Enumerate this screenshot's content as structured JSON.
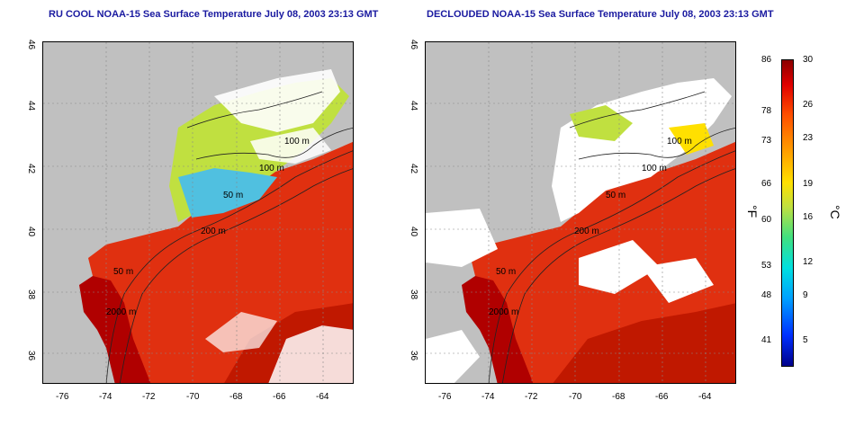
{
  "titles": {
    "left": "RU COOL NOAA-15 Sea Surface Temperature July 08, 2003 23:13 GMT",
    "right": "DECLOUDED NOAA-15 Sea Surface Temperature July 08, 2003 23:13 GMT"
  },
  "axes": {
    "x_ticks": [
      "-76",
      "-74",
      "-72",
      "-70",
      "-68",
      "-66",
      "-64"
    ],
    "y_ticks": [
      "46",
      "44",
      "42",
      "40",
      "38",
      "36"
    ]
  },
  "contour_labels": [
    "100 m",
    "100 m",
    "50 m",
    "200 m",
    "50 m",
    "2000 m"
  ],
  "colorbar": {
    "fahrenheit_ticks": [
      "86",
      "78",
      "73",
      "66",
      "60",
      "53",
      "48",
      "41"
    ],
    "celsius_ticks": [
      "30",
      "26",
      "23",
      "19",
      "16",
      "12",
      "9",
      "5"
    ],
    "unit_f": "°F",
    "unit_c": "°C"
  },
  "colors": {
    "land": "#c0c0c0",
    "cloud": "#ffffff",
    "warm": "#e03010",
    "hot": "#b00000",
    "cool": "#50c0e0",
    "mild": "#c0e040",
    "title": "#1a1aa0"
  }
}
